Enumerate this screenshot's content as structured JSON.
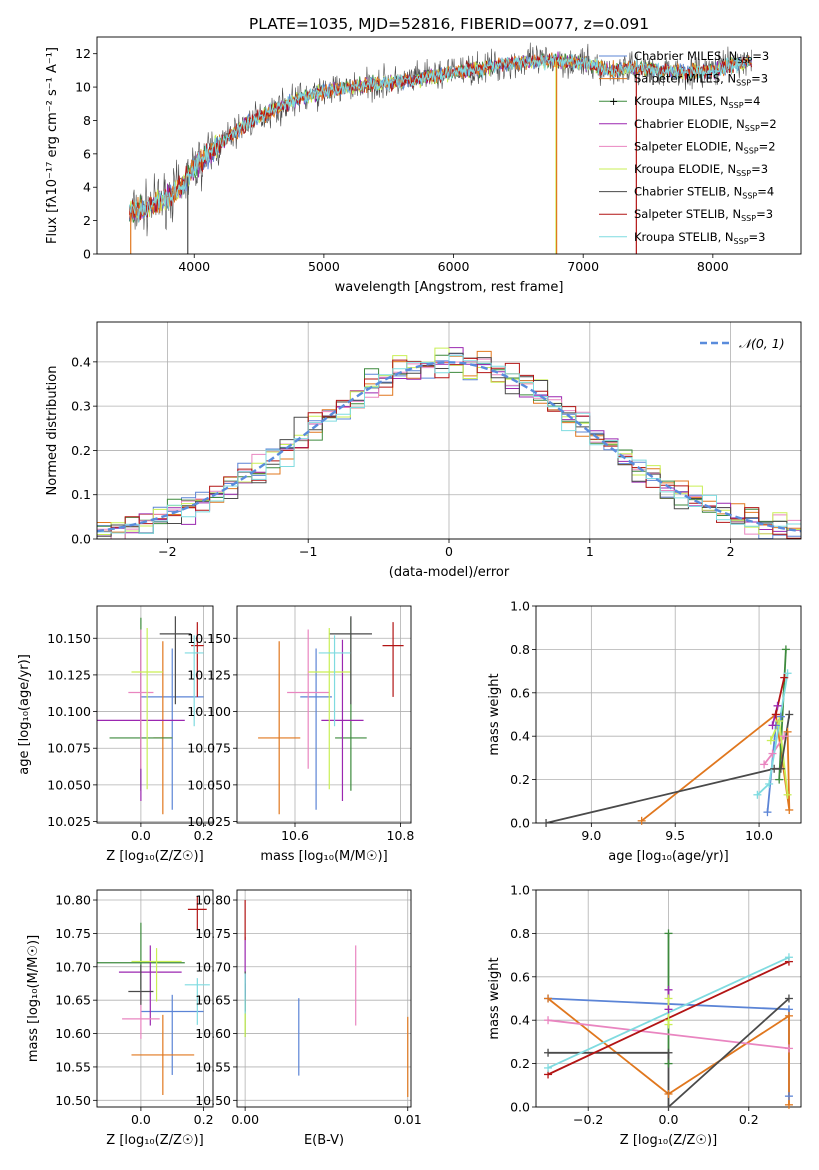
{
  "figure_title": "PLATE=1035, MJD=52816, FIBERID=0077, z=0.091",
  "colors": {
    "c0": "#5b84d6",
    "c1": "#e0771e",
    "c2": "#3d8a3d",
    "c3": "#9b27b0",
    "c4": "#e985c0",
    "c5": "#c9ef55",
    "c6": "#4a4a4a",
    "c7": "#b21414",
    "c8": "#7fdbe0",
    "normal": "#5a8cdc"
  },
  "chart_data": [
    {
      "id": "spectrum",
      "type": "line",
      "title": "PLATE=1035, MJD=52816, FIBERID=0077, z=0.091",
      "xlabel": "wavelength [Angstrom, rest frame]",
      "ylabel": "Flux [fλ10⁻¹⁷ erg cm⁻² s⁻¹ A⁻¹]",
      "xlim": [
        3250,
        8680
      ],
      "ylim": [
        0,
        13
      ],
      "xticks": [
        4000,
        5000,
        6000,
        7000,
        8000
      ],
      "yticks": [
        0,
        2,
        4,
        6,
        8,
        10,
        12
      ],
      "grid": false,
      "legend_position": "top-right",
      "legend": [
        "Chabrier MILES, N_SSP=3",
        "Salpeter MILES, N_SSP=3",
        "Kroupa MILES, N_SSP=4",
        "Chabrier ELODIE, N_SSP=2",
        "Salpeter ELODIE, N_SSP=2",
        "Kroupa ELODIE, N_SSP=3",
        "Chabrier STELIB, N_SSP=4",
        "Salpeter STELIB, N_SSP=3",
        "Kroupa STELIB, N_SSP=3"
      ],
      "continuum": [
        [
          3500,
          2.4
        ],
        [
          3700,
          3.0
        ],
        [
          3900,
          4.0
        ],
        [
          4000,
          5.2
        ],
        [
          4200,
          6.6
        ],
        [
          4400,
          7.8
        ],
        [
          4600,
          8.6
        ],
        [
          4800,
          9.3
        ],
        [
          5000,
          9.7
        ],
        [
          5200,
          10.0
        ],
        [
          5400,
          10.2
        ],
        [
          5600,
          10.3
        ],
        [
          5800,
          10.6
        ],
        [
          6000,
          10.9
        ],
        [
          6200,
          11.1
        ],
        [
          6400,
          11.4
        ],
        [
          6600,
          11.5
        ],
        [
          6800,
          11.6
        ],
        [
          7000,
          11.4
        ],
        [
          7200,
          11.0
        ],
        [
          7400,
          11.2
        ],
        [
          7600,
          11.0
        ],
        [
          7800,
          10.9
        ],
        [
          8000,
          11.0
        ],
        [
          8200,
          11.4
        ],
        [
          8300,
          11.6
        ]
      ]
    },
    {
      "id": "residual_hist",
      "type": "histogram",
      "xlabel": "(data-model)/error",
      "ylabel": "Normed distribution",
      "xlim": [
        -2.5,
        2.5
      ],
      "ylim": [
        0,
        0.49
      ],
      "xticks": [
        -2,
        -1,
        0,
        1,
        2
      ],
      "yticks": [
        0.0,
        0.1,
        0.2,
        0.3,
        0.4
      ],
      "grid": true,
      "legend_position": "top-right",
      "legend": [
        "𝒩(0, 1)"
      ]
    },
    {
      "id": "age_vs_z",
      "type": "scatter",
      "xlabel": "Z [log₁₀(Z/Z☉)]",
      "ylabel": "age  [log₁₀(age/yr)]",
      "xlim": [
        -0.14,
        0.23
      ],
      "ylim": [
        10.024,
        10.172
      ],
      "xticks": [
        0.0,
        0.2
      ],
      "yticks": [
        10.025,
        10.05,
        10.075,
        10.1,
        10.125,
        10.15
      ],
      "grid": true,
      "points": [
        {
          "x": 0.1,
          "y": 10.11,
          "xerr": 0.1,
          "yerr": [
            0.077,
            0.033
          ]
        },
        {
          "x": 0.07,
          "y": 10.082,
          "xerr": 0.03,
          "yerr": [
            0.052,
            0.066
          ]
        },
        {
          "x": 0.0,
          "y": 10.082,
          "xerr": 0.1,
          "yerr": [
            0.036,
            0.082
          ]
        },
        {
          "x": 0.0,
          "y": 10.094,
          "xerr": 0.14,
          "yerr": [
            0.055,
            0.055
          ]
        },
        {
          "x": 0.0,
          "y": 10.113,
          "xerr": 0.04,
          "yerr": [
            0.052,
            0.043
          ]
        },
        {
          "x": 0.02,
          "y": 10.127,
          "xerr": 0.05,
          "yerr": [
            0.08,
            0.03
          ]
        },
        {
          "x": 0.11,
          "y": 10.153,
          "xerr": 0.05,
          "yerr": [
            0.048,
            0.012
          ]
        },
        {
          "x": 0.18,
          "y": 10.145,
          "xerr": 0.02,
          "yerr": [
            0.035,
            0.016
          ]
        },
        {
          "x": 0.17,
          "y": 10.14,
          "xerr": 0.03,
          "yerr": [
            0.05,
            0.012
          ]
        }
      ]
    },
    {
      "id": "age_vs_mass",
      "type": "scatter",
      "xlabel": "mass [log₁₀(M/M☉)]",
      "ylabel": "",
      "xlim": [
        10.49,
        10.82
      ],
      "ylim": [
        10.024,
        10.172
      ],
      "xticks": [
        10.6,
        10.8
      ],
      "yticks": [
        10.025,
        10.05,
        10.075,
        10.1,
        10.125,
        10.15
      ],
      "grid": true,
      "points": [
        {
          "x": 10.64,
          "y": 10.11,
          "xerr": 0.03,
          "yerr": [
            0.077,
            0.033
          ]
        },
        {
          "x": 10.57,
          "y": 10.082,
          "xerr": 0.04,
          "yerr": [
            0.052,
            0.066
          ]
        },
        {
          "x": 10.706,
          "y": 10.082,
          "xerr": 0.03,
          "yerr": [
            0.036,
            0.082
          ]
        },
        {
          "x": 10.69,
          "y": 10.094,
          "xerr": 0.04,
          "yerr": [
            0.055,
            0.055
          ]
        },
        {
          "x": 10.625,
          "y": 10.113,
          "xerr": 0.04,
          "yerr": [
            0.052,
            0.043
          ]
        },
        {
          "x": 10.665,
          "y": 10.127,
          "xerr": 0.04,
          "yerr": [
            0.08,
            0.03
          ]
        },
        {
          "x": 10.706,
          "y": 10.153,
          "xerr": 0.04,
          "yerr": [
            0.048,
            0.012
          ]
        },
        {
          "x": 10.786,
          "y": 10.145,
          "xerr": 0.02,
          "yerr": [
            0.035,
            0.016
          ]
        },
        {
          "x": 10.675,
          "y": 10.14,
          "xerr": 0.03,
          "yerr": [
            0.05,
            0.012
          ]
        }
      ]
    },
    {
      "id": "mass_weight_vs_age",
      "type": "line",
      "xlabel": "age  [log₁₀(age/yr)]",
      "ylabel": "mass weight",
      "xlim": [
        8.67,
        10.25
      ],
      "ylim": [
        0,
        1
      ],
      "xticks": [
        9.0,
        9.5,
        10.0
      ],
      "yticks": [
        0.0,
        0.2,
        0.4,
        0.6,
        0.8,
        1.0
      ],
      "grid": true,
      "series": [
        {
          "points": [
            [
              10.05,
              0.05
            ],
            [
              10.1,
              0.45
            ],
            [
              10.13,
              0.49
            ]
          ]
        },
        {
          "points": [
            [
              9.3,
              0.01
            ],
            [
              10.1,
              0.5
            ],
            [
              10.18,
              0.06
            ],
            [
              10.17,
              0.42
            ]
          ]
        },
        {
          "points": [
            [
              10.12,
              0.2
            ],
            [
              10.16,
              0.8
            ]
          ]
        },
        {
          "points": [
            [
              10.08,
              0.45
            ],
            [
              10.11,
              0.54
            ]
          ]
        },
        {
          "points": [
            [
              10.03,
              0.27
            ],
            [
              10.08,
              0.32
            ],
            [
              10.15,
              0.4
            ]
          ]
        },
        {
          "points": [
            [
              10.07,
              0.38
            ],
            [
              10.12,
              0.47
            ],
            [
              10.17,
              0.13
            ]
          ]
        },
        {
          "points": [
            [
              8.73,
              0.0
            ],
            [
              10.09,
              0.25
            ],
            [
              10.13,
              0.25
            ],
            [
              10.18,
              0.5
            ]
          ]
        },
        {
          "points": [
            [
              10.1,
              0.5
            ],
            [
              10.15,
              0.67
            ]
          ]
        },
        {
          "points": [
            [
              9.99,
              0.13
            ],
            [
              10.06,
              0.18
            ],
            [
              10.17,
              0.69
            ]
          ]
        }
      ]
    },
    {
      "id": "mass_vs_z",
      "type": "scatter",
      "xlabel": "Z [log₁₀(Z/Z☉)]",
      "ylabel": "mass [log₁₀(M/M☉)]",
      "xlim": [
        -0.14,
        0.23
      ],
      "ylim": [
        10.49,
        10.815
      ],
      "xticks": [
        0.0,
        0.2
      ],
      "yticks": [
        10.5,
        10.55,
        10.6,
        10.65,
        10.7,
        10.75,
        10.8
      ],
      "grid": true,
      "points": [
        {
          "x": 0.1,
          "y": 10.633,
          "xerr": 0.1,
          "yerr": [
            0.095,
            0.025
          ]
        },
        {
          "x": 0.07,
          "y": 10.568,
          "xerr": 0.1,
          "yerr": [
            0.06,
            0.06
          ]
        },
        {
          "x": 0.0,
          "y": 10.706,
          "xerr": 0.14,
          "yerr": [
            0.04,
            0.06
          ]
        },
        {
          "x": 0.03,
          "y": 10.692,
          "xerr": 0.1,
          "yerr": [
            0.08,
            0.04
          ]
        },
        {
          "x": 0.0,
          "y": 10.622,
          "xerr": 0.06,
          "yerr": [
            0.03,
            0.04
          ]
        },
        {
          "x": 0.05,
          "y": 10.708,
          "xerr": 0.08,
          "yerr": [
            0.06,
            0.02
          ]
        },
        {
          "x": 0.0,
          "y": 10.663,
          "xerr": 0.04,
          "yerr": [
            0.02,
            0.04
          ]
        },
        {
          "x": 0.18,
          "y": 10.786,
          "xerr": 0.03,
          "yerr": [
            0.03,
            0.02
          ]
        },
        {
          "x": 0.18,
          "y": 10.673,
          "xerr": 0.04,
          "yerr": [
            0.06,
            0.01
          ]
        }
      ]
    },
    {
      "id": "mass_vs_ebv",
      "type": "scatter",
      "xlabel": "E(B-V)",
      "ylabel": "",
      "xlim": [
        -0.0005,
        0.0102
      ],
      "ylim": [
        10.49,
        10.815
      ],
      "xticks": [
        0.0,
        0.01
      ],
      "xticklabels": [
        "0.00",
        "0.01"
      ],
      "yticks": [
        10.5,
        10.55,
        10.6,
        10.65,
        10.7,
        10.75,
        10.8
      ],
      "grid": true,
      "points": [
        {
          "x": 0.0033,
          "y": 10.595,
          "xerr": 0,
          "yerr": [
            0.058,
            0.058
          ]
        },
        {
          "x": 0.01,
          "y": 10.565,
          "xerr": 0,
          "yerr": [
            0.06,
            0.06
          ]
        },
        {
          "x": 0.0,
          "y": 10.635,
          "xerr": 0,
          "yerr": [
            0.04,
            0.04
          ]
        },
        {
          "x": 0.0,
          "y": 10.695,
          "xerr": 0,
          "yerr": [
            0.05,
            0.05
          ]
        },
        {
          "x": 0.0068,
          "y": 10.672,
          "xerr": 0,
          "yerr": [
            0.06,
            0.06
          ]
        },
        {
          "x": 0.0,
          "y": 10.625,
          "xerr": 0,
          "yerr": [
            0.03,
            0.03
          ]
        },
        {
          "x": 0.0,
          "y": 10.663,
          "xerr": 0,
          "yerr": [
            0.03,
            0.03
          ]
        },
        {
          "x": 0.0,
          "y": 10.77,
          "xerr": 0,
          "yerr": [
            0.03,
            0.03
          ]
        },
        {
          "x": 0.0,
          "y": 10.66,
          "xerr": 0,
          "yerr": [
            0.03,
            0.03
          ]
        }
      ]
    },
    {
      "id": "mass_weight_vs_z",
      "type": "line",
      "xlabel": "Z [log₁₀(Z/Z☉)]",
      "ylabel": "mass weight",
      "xlim": [
        -0.33,
        0.33
      ],
      "ylim": [
        0,
        1
      ],
      "xticks": [
        -0.2,
        0.0,
        0.2
      ],
      "yticks": [
        0.0,
        0.2,
        0.4,
        0.6,
        0.8,
        1.0
      ],
      "grid": true,
      "series": [
        {
          "points": [
            [
              -0.3,
              0.5
            ],
            [
              0.3,
              0.45
            ],
            [
              0.3,
              0.05
            ]
          ]
        },
        {
          "points": [
            [
              -0.3,
              0.5
            ],
            [
              0.0,
              0.06
            ],
            [
              0.3,
              0.42
            ],
            [
              0.3,
              0.01
            ]
          ]
        },
        {
          "points": [
            [
              0.0,
              0.2
            ],
            [
              0.0,
              0.8
            ]
          ]
        },
        {
          "points": [
            [
              0.0,
              0.54
            ],
            [
              0.0,
              0.45
            ]
          ]
        },
        {
          "points": [
            [
              -0.3,
              0.4
            ],
            [
              0.3,
              0.27
            ]
          ]
        },
        {
          "points": [
            [
              0.0,
              0.5
            ],
            [
              0.0,
              0.38
            ],
            [
              0.0,
              0.4
            ]
          ]
        },
        {
          "points": [
            [
              -0.3,
              0.25
            ],
            [
              0.0,
              0.25
            ],
            [
              0.0,
              0.0
            ],
            [
              0.3,
              0.5
            ]
          ]
        },
        {
          "points": [
            [
              -0.3,
              0.15
            ],
            [
              0.3,
              0.67
            ]
          ]
        },
        {
          "points": [
            [
              -0.3,
              0.18
            ],
            [
              0.3,
              0.69
            ]
          ]
        }
      ]
    }
  ]
}
